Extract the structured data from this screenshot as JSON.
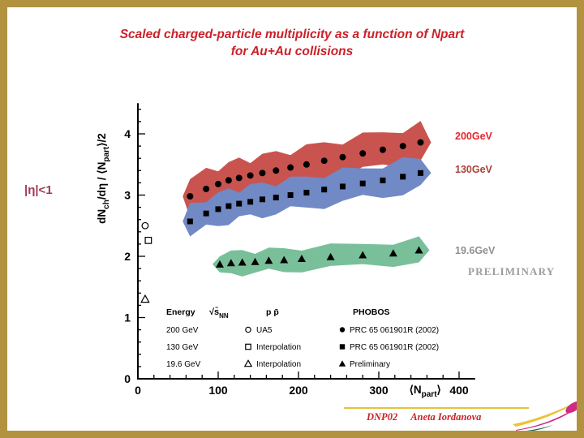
{
  "slide": {
    "title_line1": "Scaled charged-particle multiplicity as a function of Npart",
    "title_line2": "for Au+Au collisions",
    "eta_cut_label": "|η|<1",
    "footer_conference": "DNP02",
    "footer_author": "Aneta Iordanova"
  },
  "annotations": {
    "label_200gev": {
      "text": "200GeV",
      "color": "#e8262d"
    },
    "label_130gev": {
      "text": "130GeV",
      "color": "#a8433a"
    },
    "label_196gev": {
      "text": "19.6GeV",
      "color": "#8f9192"
    },
    "preliminary": {
      "text": "PRELIMINARY",
      "color": "#9a9d9e"
    }
  },
  "colors": {
    "slide_border": "#b2923e",
    "title_red": "#cc2129",
    "band_200gev": "#c9544f",
    "band_130gev": "#7189c4",
    "band_196gev": "#79c09a",
    "footer_line": "#e7c23b"
  },
  "chart_data": {
    "type": "scatter",
    "title": "Scaled charged-particle multiplicity vs Npart for Au+Au collisions",
    "xlabel": "⟨N_part⟩",
    "ylabel": "dN_ch/dη / ⟨N_part⟩/2",
    "xlabel_parts": [
      [
        "⟨N",
        false
      ],
      [
        "part",
        true
      ],
      [
        "⟩",
        false
      ]
    ],
    "ylabel_parts": [
      [
        "dN",
        false
      ],
      [
        "ch",
        true
      ],
      [
        "/dη / ⟨N",
        false
      ],
      [
        "part",
        true
      ],
      [
        "⟩/2",
        false
      ]
    ],
    "xlim": [
      0,
      420
    ],
    "ylim": [
      0,
      4.5
    ],
    "x_ticks": [
      0,
      100,
      200,
      300,
      400
    ],
    "y_ticks": [
      0,
      1,
      2,
      3,
      4
    ],
    "grid": false,
    "series": [
      {
        "id": "200gev",
        "name": "200 GeV Au+Au (PHOBOS PRC 65 061901R (2002))",
        "marker": "circle",
        "band_color": "#c9544f",
        "band_halfwidth": 0.28,
        "points": [
          [
            65,
            2.98
          ],
          [
            85,
            3.1
          ],
          [
            100,
            3.18
          ],
          [
            113,
            3.24
          ],
          [
            126,
            3.28
          ],
          [
            140,
            3.32
          ],
          [
            155,
            3.36
          ],
          [
            172,
            3.4
          ],
          [
            190,
            3.45
          ],
          [
            210,
            3.5
          ],
          [
            232,
            3.56
          ],
          [
            255,
            3.62
          ],
          [
            280,
            3.68
          ],
          [
            305,
            3.74
          ],
          [
            330,
            3.8
          ],
          [
            352,
            3.86
          ]
        ]
      },
      {
        "id": "130gev",
        "name": "130 GeV Au+Au (PHOBOS PRC 65 061901R (2002))",
        "marker": "square",
        "band_color": "#7189c4",
        "band_halfwidth": 0.25,
        "points": [
          [
            65,
            2.57
          ],
          [
            85,
            2.7
          ],
          [
            100,
            2.77
          ],
          [
            113,
            2.82
          ],
          [
            126,
            2.86
          ],
          [
            140,
            2.89
          ],
          [
            155,
            2.93
          ],
          [
            172,
            2.96
          ],
          [
            190,
            3.0
          ],
          [
            210,
            3.04
          ],
          [
            232,
            3.09
          ],
          [
            255,
            3.14
          ],
          [
            280,
            3.19
          ],
          [
            305,
            3.24
          ],
          [
            330,
            3.3
          ],
          [
            352,
            3.36
          ]
        ]
      },
      {
        "id": "196gev",
        "name": "19.6 GeV Au+Au (PHOBOS Preliminary)",
        "marker": "triangle",
        "band_color": "#79c09a",
        "band_halfwidth": 0.18,
        "points": [
          [
            102,
            1.87
          ],
          [
            116,
            1.89
          ],
          [
            130,
            1.9
          ],
          [
            146,
            1.91
          ],
          [
            163,
            1.93
          ],
          [
            182,
            1.94
          ],
          [
            204,
            1.96
          ],
          [
            240,
            1.99
          ],
          [
            280,
            2.02
          ],
          [
            318,
            2.05
          ],
          [
            350,
            2.1
          ]
        ]
      }
    ],
    "reference_points": [
      {
        "label": "UA5 p p̄ 200 GeV",
        "marker": "circle-open",
        "x": 9,
        "y": 2.5
      },
      {
        "label": "Interpolation p p̄ 130 GeV",
        "marker": "square-open",
        "x": 13,
        "y": 2.26
      },
      {
        "label": "Interpolation p p̄ 19.6 GeV",
        "marker": "triangle-open",
        "x": 9,
        "y": 1.3
      }
    ],
    "legend": {
      "header_energy": "Energy",
      "header_energy_symbol": [
        [
          "√s̄",
          false
        ],
        [
          "NN",
          true
        ]
      ],
      "header_pp": "p p̄",
      "header_phobos": "PHOBOS",
      "rows": [
        {
          "energy": "200 GeV",
          "pp_marker": "circle-open",
          "pp_label": "UA5",
          "phobos_marker": "circle-filled",
          "phobos_label": "PRC 65 061901R (2002)"
        },
        {
          "energy": "130 GeV",
          "pp_marker": "square-open",
          "pp_label": "Interpolation",
          "phobos_marker": "square-filled",
          "phobos_label": "PRC 65 061901R (2002)"
        },
        {
          "energy": "19.6 GeV",
          "pp_marker": "triangle-open",
          "pp_label": "Interpolation",
          "phobos_marker": "triangle-filled",
          "phobos_label": "Preliminary"
        }
      ]
    }
  }
}
